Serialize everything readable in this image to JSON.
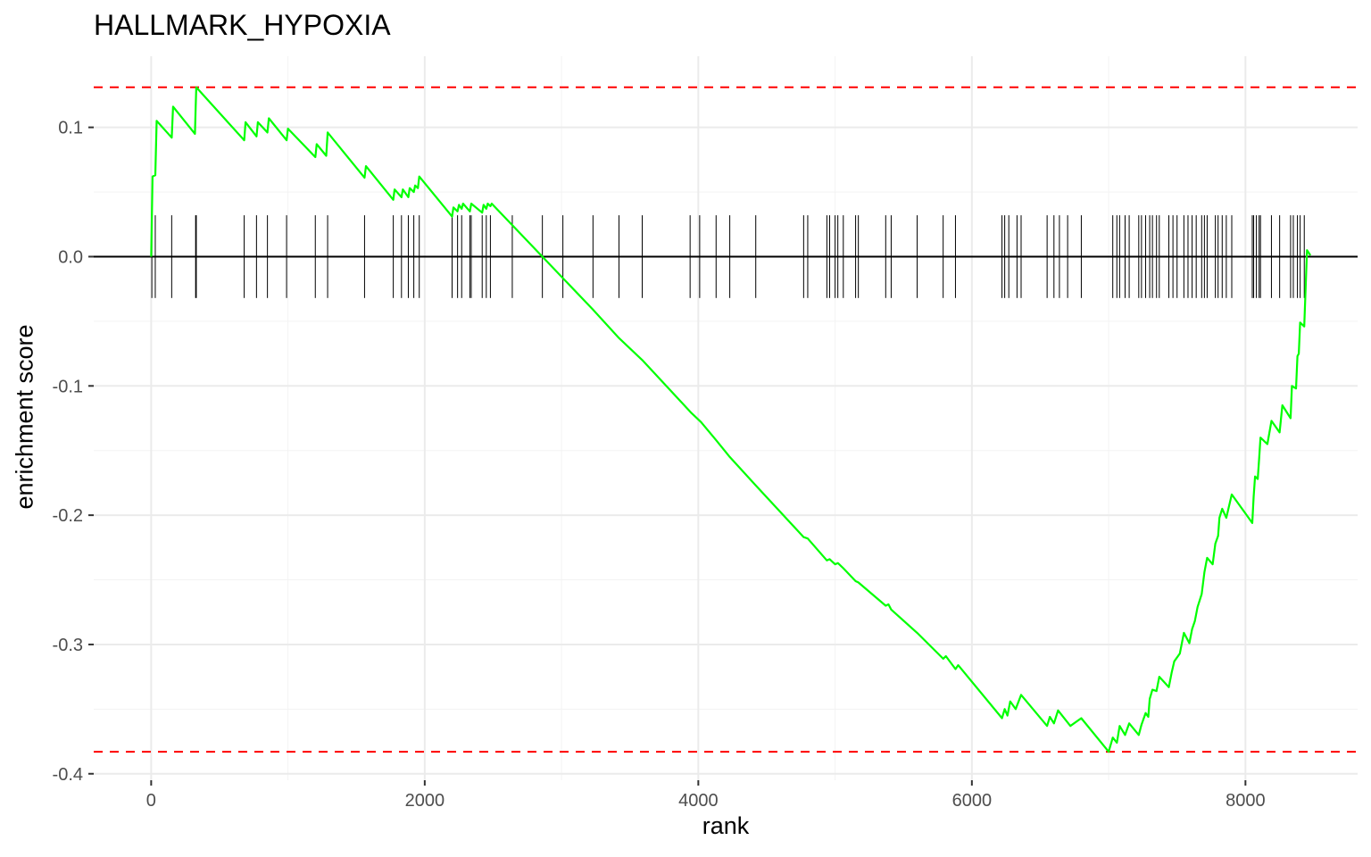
{
  "chart_data": {
    "type": "line",
    "title": "HALLMARK_HYPOXIA",
    "xlabel": "rank",
    "ylabel": "enrichment score",
    "xlim": [
      -420,
      8820
    ],
    "ylim": [
      -0.405,
      0.155
    ],
    "x_ticks": [
      0,
      2000,
      4000,
      6000,
      8000
    ],
    "x_tick_labels": [
      "0",
      "2000",
      "4000",
      "6000",
      "8000"
    ],
    "y_ticks": [
      -0.4,
      -0.3,
      -0.2,
      -0.1,
      0.0,
      0.1
    ],
    "y_tick_labels": [
      "-0.4",
      "-0.3",
      "-0.2",
      "-0.1",
      "0.0",
      "0.1"
    ],
    "grid": true,
    "colors": {
      "curve": "#00ff00",
      "threshold": "#ff0000",
      "zero_line": "#000000",
      "hits": "#000000",
      "grid": "#ebebeb"
    },
    "thresholds": [
      0.131,
      -0.383
    ],
    "zero_line": 0,
    "hit_band": [
      -0.032,
      0.032
    ],
    "series": [
      {
        "values": [
          [
            0,
            0
          ],
          [
            10,
            0.062
          ],
          [
            30,
            0.063
          ],
          [
            40,
            0.105
          ],
          [
            150,
            0.092
          ],
          [
            160,
            0.116
          ],
          [
            320,
            0.095
          ],
          [
            325,
            0.115
          ],
          [
            330,
            0.131
          ],
          [
            680,
            0.09
          ],
          [
            690,
            0.104
          ],
          [
            770,
            0.093
          ],
          [
            780,
            0.104
          ],
          [
            850,
            0.096
          ],
          [
            860,
            0.107
          ],
          [
            990,
            0.09
          ],
          [
            1000,
            0.099
          ],
          [
            1200,
            0.077
          ],
          [
            1210,
            0.087
          ],
          [
            1280,
            0.078
          ],
          [
            1290,
            0.096
          ],
          [
            1560,
            0.061
          ],
          [
            1570,
            0.07
          ],
          [
            1770,
            0.044
          ],
          [
            1780,
            0.052
          ],
          [
            1830,
            0.046
          ],
          [
            1840,
            0.052
          ],
          [
            1880,
            0.046
          ],
          [
            1890,
            0.053
          ],
          [
            1920,
            0.05
          ],
          [
            1930,
            0.055
          ],
          [
            1950,
            0.053
          ],
          [
            1960,
            0.062
          ],
          [
            2200,
            0.031
          ],
          [
            2210,
            0.038
          ],
          [
            2240,
            0.035
          ],
          [
            2250,
            0.04
          ],
          [
            2270,
            0.037
          ],
          [
            2280,
            0.041
          ],
          [
            2330,
            0.035
          ],
          [
            2340,
            0.041
          ],
          [
            2420,
            0.034
          ],
          [
            2430,
            0.04
          ],
          [
            2450,
            0.037
          ],
          [
            2460,
            0.041
          ],
          [
            2480,
            0.039
          ],
          [
            2490,
            0.041
          ],
          [
            3230,
            -0.041
          ],
          [
            3420,
            -0.063
          ],
          [
            3590,
            -0.08
          ],
          [
            3950,
            -0.121
          ],
          [
            4020,
            -0.128
          ],
          [
            4130,
            -0.142
          ],
          [
            4230,
            -0.155
          ],
          [
            4420,
            -0.177
          ],
          [
            4770,
            -0.217
          ],
          [
            4800,
            -0.218
          ],
          [
            4940,
            -0.235
          ],
          [
            4960,
            -0.234
          ],
          [
            5000,
            -0.238
          ],
          [
            5020,
            -0.237
          ],
          [
            5060,
            -0.241
          ],
          [
            5150,
            -0.251
          ],
          [
            5170,
            -0.252
          ],
          [
            5370,
            -0.27
          ],
          [
            5390,
            -0.269
          ],
          [
            5410,
            -0.273
          ],
          [
            5600,
            -0.291
          ],
          [
            5790,
            -0.311
          ],
          [
            5810,
            -0.309
          ],
          [
            5880,
            -0.319
          ],
          [
            5900,
            -0.316
          ],
          [
            6220,
            -0.357
          ],
          [
            6240,
            -0.35
          ],
          [
            6260,
            -0.355
          ],
          [
            6280,
            -0.344
          ],
          [
            6320,
            -0.35
          ],
          [
            6360,
            -0.339
          ],
          [
            6550,
            -0.363
          ],
          [
            6570,
            -0.356
          ],
          [
            6600,
            -0.361
          ],
          [
            6630,
            -0.351
          ],
          [
            6720,
            -0.363
          ],
          [
            6800,
            -0.357
          ],
          [
            7000,
            -0.383
          ],
          [
            7030,
            -0.372
          ],
          [
            7060,
            -0.376
          ],
          [
            7080,
            -0.363
          ],
          [
            7120,
            -0.37
          ],
          [
            7150,
            -0.361
          ],
          [
            7220,
            -0.37
          ],
          [
            7240,
            -0.362
          ],
          [
            7270,
            -0.353
          ],
          [
            7290,
            -0.356
          ],
          [
            7300,
            -0.342
          ],
          [
            7320,
            -0.335
          ],
          [
            7350,
            -0.336
          ],
          [
            7370,
            -0.325
          ],
          [
            7440,
            -0.333
          ],
          [
            7460,
            -0.322
          ],
          [
            7480,
            -0.313
          ],
          [
            7520,
            -0.307
          ],
          [
            7550,
            -0.291
          ],
          [
            7590,
            -0.299
          ],
          [
            7610,
            -0.288
          ],
          [
            7630,
            -0.282
          ],
          [
            7650,
            -0.271
          ],
          [
            7680,
            -0.261
          ],
          [
            7700,
            -0.244
          ],
          [
            7720,
            -0.233
          ],
          [
            7760,
            -0.238
          ],
          [
            7780,
            -0.222
          ],
          [
            7800,
            -0.216
          ],
          [
            7810,
            -0.202
          ],
          [
            7830,
            -0.195
          ],
          [
            7860,
            -0.202
          ],
          [
            7900,
            -0.184
          ],
          [
            8050,
            -0.206
          ],
          [
            8060,
            -0.186
          ],
          [
            8070,
            -0.17
          ],
          [
            8090,
            -0.172
          ],
          [
            8100,
            -0.156
          ],
          [
            8110,
            -0.14
          ],
          [
            8160,
            -0.145
          ],
          [
            8190,
            -0.127
          ],
          [
            8250,
            -0.136
          ],
          [
            8270,
            -0.115
          ],
          [
            8330,
            -0.125
          ],
          [
            8340,
            -0.1
          ],
          [
            8370,
            -0.102
          ],
          [
            8380,
            -0.077
          ],
          [
            8390,
            -0.075
          ],
          [
            8400,
            -0.051
          ],
          [
            8430,
            -0.054
          ],
          [
            8450,
            0.005
          ],
          [
            8475,
            0.001
          ]
        ]
      }
    ],
    "hits": [
      5,
      30,
      150,
      325,
      330,
      680,
      770,
      850,
      990,
      1200,
      1290,
      1560,
      1770,
      1830,
      1880,
      1920,
      1960,
      2200,
      2240,
      2270,
      2330,
      2340,
      2420,
      2450,
      2480,
      2640,
      2860,
      3010,
      3230,
      3420,
      3590,
      3940,
      4010,
      4130,
      4230,
      4420,
      4770,
      4800,
      4940,
      4960,
      5000,
      5020,
      5060,
      5150,
      5170,
      5370,
      5410,
      5600,
      5790,
      5880,
      6220,
      6240,
      6270,
      6330,
      6360,
      6550,
      6600,
      6640,
      6700,
      6800,
      7030,
      7060,
      7080,
      7120,
      7150,
      7220,
      7240,
      7270,
      7300,
      7320,
      7350,
      7370,
      7440,
      7470,
      7500,
      7550,
      7580,
      7610,
      7640,
      7680,
      7700,
      7720,
      7780,
      7800,
      7830,
      7860,
      7900,
      8050,
      8060,
      8080,
      8100,
      8110,
      8190,
      8250,
      8330,
      8350,
      8380,
      8400,
      8430
    ]
  }
}
